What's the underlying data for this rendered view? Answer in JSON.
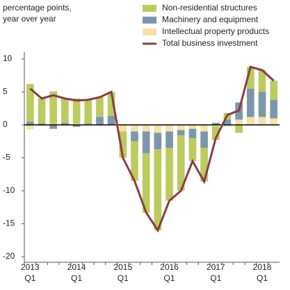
{
  "chart_data": {
    "type": "bar",
    "ylabel": [
      "percentage points,",
      "year over year"
    ],
    "categories": [
      "2013 Q1",
      null,
      null,
      null,
      "2014 Q1",
      null,
      null,
      null,
      "2015 Q1",
      null,
      null,
      null,
      "2016 Q1",
      null,
      null,
      null,
      "2017 Q1",
      null,
      null,
      null,
      "2018 Q1",
      null
    ],
    "series": [
      {
        "name": "Non-residential structures",
        "color": "#bccb5e",
        "values": [
          5.7,
          3.8,
          5.0,
          3.7,
          3.8,
          3.6,
          3.0,
          3.6,
          -4.0,
          -6.0,
          -9.0,
          -12.3,
          -8.0,
          -8.4,
          -3.5,
          -5.1,
          -2.1,
          1.0,
          -1.2,
          3.3,
          3.3,
          2.9
        ]
      },
      {
        "name": "Machinery and equipment",
        "color": "#7b97ab",
        "values": [
          0.5,
          0.2,
          -0.6,
          0.3,
          -0.3,
          0.1,
          1.2,
          1.4,
          0.0,
          -1.5,
          -3.3,
          -2.5,
          -2.5,
          -0.8,
          -1.4,
          -2.5,
          0.3,
          0.8,
          2.6,
          4.3,
          3.8,
          2.8
        ]
      },
      {
        "name": "Intellectual property products",
        "color": "#f8e1a4",
        "values": [
          -0.7,
          -0.1,
          0.1,
          -0.1,
          0.2,
          0.1,
          0.0,
          0.0,
          -1.0,
          -1.0,
          -1.0,
          -1.2,
          -1.0,
          -0.8,
          -0.6,
          -1.0,
          -0.2,
          -0.3,
          0.8,
          1.2,
          1.2,
          1.0
        ]
      }
    ],
    "line": {
      "name": "Total business investment",
      "color": "#8c3a47",
      "values": [
        5.5,
        4.0,
        4.5,
        4.0,
        3.7,
        3.8,
        4.2,
        5.0,
        -5.0,
        -8.5,
        -13.3,
        -16.0,
        -11.5,
        -10.0,
        -5.5,
        -8.6,
        -2.0,
        1.5,
        2.2,
        8.8,
        8.3,
        6.7
      ]
    },
    "ylim": [
      -20,
      10
    ],
    "yticks": [
      -20,
      -15,
      -10,
      -5,
      0,
      5,
      10
    ]
  }
}
